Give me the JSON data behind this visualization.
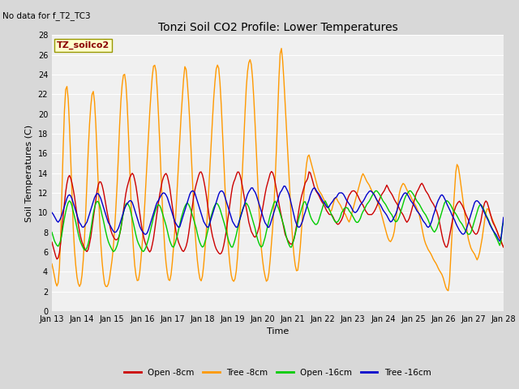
{
  "title": "Tonzi Soil CO2 Profile: Lower Temperatures",
  "subtitle": "No data for f_T2_TC3",
  "xlabel": "Time",
  "ylabel": "Soil Temperatures (C)",
  "ylim": [
    0,
    28
  ],
  "yticks": [
    0,
    2,
    4,
    6,
    8,
    10,
    12,
    14,
    16,
    18,
    20,
    22,
    24,
    26,
    28
  ],
  "x_tick_labels": [
    "Jan 13",
    "Jan 14",
    "Jan 15",
    "Jan 16",
    "Jan 17",
    "Jan 18",
    "Jan 19",
    "Jan 20",
    "Jan 21",
    "Jan 22",
    "Jan 23",
    "Jan 24",
    "Jan 25",
    "Jan 26",
    "Jan 27",
    "Jan 28"
  ],
  "legend_labels": [
    "Open -8cm",
    "Tree -8cm",
    "Open -16cm",
    "Tree -16cm"
  ],
  "legend_colors": [
    "#cc0000",
    "#ff9900",
    "#00cc00",
    "#0000cc"
  ],
  "annotation": "TZ_soilco2",
  "annotation_color": "#8b0000",
  "annotation_bg": "#ffffcc",
  "annotation_edge": "#999900",
  "fig_bg": "#d8d8d8",
  "plot_bg": "#f0f0f0",
  "grid_color": "#ffffff",
  "n_points": 361,
  "open8_data": [
    7.0,
    6.5,
    6.0,
    5.5,
    5.2,
    5.5,
    6.2,
    7.5,
    9.0,
    10.5,
    11.8,
    12.8,
    13.5,
    13.8,
    13.5,
    13.0,
    12.3,
    11.5,
    10.5,
    9.5,
    8.5,
    7.8,
    7.2,
    6.8,
    6.5,
    6.2,
    6.0,
    6.2,
    6.8,
    7.5,
    8.5,
    9.5,
    10.5,
    11.5,
    12.5,
    13.0,
    13.2,
    13.0,
    12.5,
    11.8,
    11.0,
    10.2,
    9.5,
    8.8,
    8.2,
    7.8,
    7.5,
    7.3,
    7.2,
    7.3,
    7.5,
    8.0,
    8.8,
    9.8,
    10.8,
    11.8,
    12.5,
    13.0,
    13.5,
    13.8,
    14.0,
    13.8,
    13.2,
    12.5,
    11.5,
    10.5,
    9.5,
    8.5,
    7.8,
    7.2,
    6.8,
    6.5,
    6.2,
    6.0,
    6.2,
    6.8,
    7.5,
    8.5,
    9.5,
    10.5,
    11.5,
    12.2,
    13.0,
    13.5,
    13.8,
    14.0,
    13.8,
    13.2,
    12.5,
    11.5,
    10.5,
    9.5,
    8.5,
    7.8,
    7.2,
    6.8,
    6.5,
    6.2,
    6.0,
    6.2,
    6.5,
    7.0,
    7.8,
    8.8,
    9.8,
    10.8,
    11.8,
    12.5,
    13.0,
    13.5,
    14.0,
    14.2,
    14.0,
    13.5,
    12.8,
    12.0,
    11.0,
    10.0,
    9.0,
    8.2,
    7.5,
    7.0,
    6.5,
    6.2,
    6.0,
    5.8,
    5.8,
    6.0,
    6.5,
    7.2,
    8.0,
    9.0,
    10.0,
    11.0,
    12.0,
    12.8,
    13.2,
    13.5,
    14.0,
    14.2,
    14.0,
    13.5,
    12.8,
    12.0,
    11.2,
    10.5,
    9.8,
    9.0,
    8.5,
    8.0,
    7.8,
    7.5,
    7.5,
    7.8,
    8.2,
    8.8,
    9.5,
    10.2,
    11.0,
    11.8,
    12.5,
    13.0,
    13.5,
    14.0,
    14.2,
    14.0,
    13.5,
    12.8,
    12.0,
    11.2,
    10.5,
    9.8,
    9.2,
    8.5,
    7.8,
    7.5,
    7.2,
    7.0,
    6.8,
    6.8,
    7.0,
    7.5,
    8.2,
    9.0,
    10.0,
    10.8,
    11.5,
    12.0,
    12.5,
    13.0,
    13.2,
    13.5,
    14.2,
    14.0,
    13.5,
    13.0,
    12.5,
    12.2,
    12.0,
    11.8,
    11.5,
    11.2,
    11.0,
    10.8,
    10.5,
    10.2,
    10.0,
    9.8,
    9.8,
    9.8,
    9.5,
    9.2,
    9.0,
    8.8,
    8.8,
    9.0,
    9.2,
    9.5,
    10.0,
    10.5,
    11.0,
    11.5,
    11.8,
    12.0,
    12.2,
    12.2,
    12.2,
    12.0,
    11.8,
    11.5,
    11.2,
    11.0,
    10.8,
    10.5,
    10.2,
    10.0,
    9.8,
    9.8,
    9.8,
    9.8,
    10.0,
    10.2,
    10.5,
    10.8,
    11.2,
    11.5,
    11.8,
    12.0,
    12.2,
    12.5,
    12.8,
    12.5,
    12.2,
    12.0,
    11.8,
    11.5,
    11.2,
    11.0,
    10.8,
    10.5,
    10.2,
    10.0,
    9.8,
    9.5,
    9.2,
    9.0,
    9.2,
    9.5,
    10.0,
    10.5,
    11.0,
    11.5,
    12.0,
    12.2,
    12.5,
    12.8,
    13.0,
    12.8,
    12.5,
    12.2,
    12.0,
    11.8,
    11.5,
    11.2,
    11.0,
    10.8,
    10.5,
    10.2,
    9.8,
    9.2,
    8.5,
    7.8,
    7.2,
    6.8,
    6.5,
    6.5,
    7.0,
    7.8,
    8.5,
    9.2,
    10.0,
    10.5,
    10.8,
    11.0,
    11.2,
    11.0,
    10.8,
    10.5,
    10.2,
    9.8,
    9.5,
    9.2,
    8.8,
    8.5,
    8.2,
    8.0,
    7.8,
    7.8,
    8.0,
    8.5,
    9.0,
    9.8,
    10.5,
    11.0,
    11.2,
    11.0,
    10.5,
    10.0,
    9.5,
    9.0,
    8.8,
    8.5,
    8.2,
    7.8,
    7.5,
    7.2,
    6.8,
    6.5
  ],
  "tree8_data": [
    4.8,
    4.2,
    3.5,
    2.8,
    2.5,
    3.0,
    5.0,
    9.0,
    14.0,
    18.5,
    22.0,
    23.0,
    22.5,
    20.0,
    16.5,
    12.5,
    9.0,
    6.5,
    4.8,
    3.5,
    2.8,
    2.5,
    2.8,
    3.8,
    5.5,
    8.0,
    11.0,
    14.5,
    17.5,
    20.0,
    21.5,
    22.5,
    22.0,
    20.0,
    17.0,
    13.5,
    10.0,
    7.2,
    5.2,
    3.8,
    2.8,
    2.5,
    2.5,
    2.8,
    3.5,
    4.5,
    5.5,
    7.0,
    9.0,
    11.5,
    14.0,
    17.5,
    20.5,
    22.5,
    23.8,
    24.2,
    23.5,
    21.5,
    18.5,
    15.0,
    11.5,
    8.5,
    6.2,
    4.5,
    3.5,
    3.0,
    3.2,
    4.2,
    5.8,
    7.5,
    9.5,
    12.0,
    14.5,
    17.0,
    19.5,
    21.5,
    23.5,
    24.8,
    25.0,
    24.5,
    22.5,
    19.8,
    16.8,
    13.5,
    10.5,
    8.0,
    5.8,
    4.5,
    3.5,
    3.0,
    3.2,
    4.2,
    5.8,
    7.5,
    9.5,
    12.0,
    14.5,
    17.0,
    19.5,
    21.5,
    23.5,
    24.8,
    24.5,
    23.0,
    21.0,
    18.5,
    15.5,
    12.5,
    9.8,
    7.5,
    5.8,
    4.5,
    3.5,
    3.0,
    3.2,
    4.2,
    5.8,
    7.5,
    9.5,
    12.0,
    14.5,
    17.0,
    19.5,
    21.8,
    23.5,
    24.8,
    25.0,
    24.5,
    22.5,
    20.0,
    17.0,
    14.0,
    11.0,
    8.5,
    6.5,
    5.0,
    3.8,
    3.2,
    3.0,
    3.2,
    4.0,
    5.5,
    7.5,
    9.8,
    12.2,
    15.0,
    18.0,
    21.0,
    23.5,
    24.8,
    25.5,
    25.5,
    24.5,
    22.5,
    20.0,
    17.0,
    14.2,
    11.2,
    8.5,
    6.5,
    5.2,
    4.2,
    3.5,
    3.0,
    3.2,
    4.0,
    5.5,
    7.2,
    9.0,
    11.5,
    14.5,
    18.0,
    22.0,
    25.5,
    27.0,
    26.0,
    24.0,
    21.5,
    19.0,
    16.5,
    14.0,
    11.5,
    9.0,
    7.0,
    5.5,
    4.5,
    4.0,
    4.2,
    5.5,
    7.0,
    9.0,
    11.0,
    13.0,
    14.5,
    15.5,
    16.0,
    15.5,
    15.0,
    14.5,
    14.0,
    13.5,
    13.0,
    12.5,
    12.2,
    12.0,
    11.8,
    11.5,
    11.2,
    11.0,
    10.8,
    10.5,
    10.2,
    10.0,
    10.5,
    11.0,
    11.5,
    11.5,
    11.2,
    11.0,
    10.8,
    10.5,
    10.2,
    10.0,
    9.8,
    9.5,
    9.2,
    9.0,
    9.5,
    10.0,
    10.5,
    11.0,
    11.5,
    12.0,
    12.5,
    13.0,
    13.5,
    14.0,
    13.8,
    13.5,
    13.2,
    13.0,
    12.8,
    12.5,
    12.2,
    12.0,
    11.8,
    11.5,
    11.2,
    10.8,
    10.5,
    10.0,
    9.5,
    9.0,
    8.5,
    8.0,
    7.5,
    7.2,
    7.0,
    7.2,
    7.5,
    8.0,
    9.0,
    10.0,
    11.0,
    12.0,
    12.5,
    12.8,
    13.0,
    12.8,
    12.5,
    12.2,
    12.0,
    11.8,
    11.5,
    11.2,
    11.0,
    10.8,
    10.5,
    10.2,
    9.8,
    9.2,
    8.5,
    7.8,
    7.2,
    6.8,
    6.5,
    6.2,
    6.0,
    5.8,
    5.5,
    5.2,
    5.0,
    4.8,
    4.5,
    4.2,
    4.0,
    3.8,
    3.5,
    3.0,
    2.5,
    2.2,
    2.0,
    3.0,
    5.5,
    8.0,
    10.5,
    12.5,
    14.5,
    15.0,
    14.5,
    13.5,
    12.5,
    11.5,
    10.5,
    9.5,
    8.5,
    7.5,
    7.0,
    6.5,
    6.2,
    6.0,
    5.8,
    5.5,
    5.2,
    5.5,
    6.0,
    6.8,
    7.5,
    8.5,
    9.5,
    10.2,
    10.5,
    10.2,
    9.8,
    9.5,
    9.2,
    8.8,
    8.5,
    8.2,
    7.8,
    7.5,
    7.2,
    6.8,
    6.5
  ],
  "open16_data": [
    8.0,
    7.5,
    7.0,
    6.8,
    6.5,
    6.8,
    7.2,
    8.0,
    9.0,
    9.8,
    10.5,
    11.0,
    11.2,
    11.0,
    10.5,
    9.8,
    9.2,
    8.5,
    7.8,
    7.2,
    6.8,
    6.5,
    6.2,
    6.2,
    6.5,
    7.0,
    7.8,
    8.8,
    9.8,
    10.5,
    11.0,
    11.2,
    11.0,
    10.5,
    9.8,
    9.2,
    8.5,
    7.8,
    7.2,
    6.8,
    6.5,
    6.2,
    6.0,
    6.2,
    6.5,
    7.0,
    7.8,
    8.5,
    9.5,
    10.2,
    10.8,
    11.0,
    10.8,
    10.5,
    9.8,
    9.2,
    8.5,
    7.8,
    7.2,
    6.8,
    6.5,
    6.2,
    6.0,
    6.2,
    6.5,
    7.0,
    7.5,
    8.2,
    8.8,
    9.5,
    10.0,
    10.5,
    10.8,
    10.8,
    10.5,
    10.0,
    9.5,
    9.0,
    8.5,
    7.8,
    7.2,
    6.8,
    6.5,
    6.5,
    7.0,
    7.5,
    8.2,
    8.8,
    9.5,
    10.0,
    10.5,
    10.8,
    11.0,
    10.8,
    10.5,
    10.0,
    9.5,
    9.0,
    8.5,
    7.8,
    7.2,
    6.8,
    6.5,
    6.5,
    7.0,
    7.5,
    8.2,
    8.8,
    9.5,
    10.0,
    10.5,
    10.8,
    11.0,
    10.8,
    10.5,
    10.0,
    9.5,
    9.0,
    8.5,
    7.8,
    7.2,
    6.8,
    6.5,
    6.5,
    7.0,
    7.5,
    8.2,
    8.8,
    9.5,
    10.0,
    10.5,
    10.8,
    11.0,
    10.8,
    10.5,
    10.0,
    9.5,
    9.0,
    8.5,
    7.8,
    7.2,
    6.8,
    6.5,
    6.5,
    7.0,
    7.5,
    8.2,
    8.8,
    9.5,
    10.0,
    10.5,
    11.0,
    11.2,
    10.8,
    10.5,
    10.0,
    9.5,
    9.0,
    8.5,
    7.8,
    7.2,
    6.8,
    6.5,
    6.5,
    7.0,
    7.5,
    8.2,
    8.8,
    9.5,
    10.0,
    10.5,
    11.0,
    11.2,
    10.8,
    10.5,
    10.0,
    9.5,
    9.2,
    9.0,
    8.8,
    8.8,
    9.0,
    9.5,
    10.0,
    10.5,
    11.0,
    11.2,
    10.8,
    10.5,
    10.2,
    9.8,
    9.5,
    9.2,
    9.0,
    9.0,
    9.2,
    9.5,
    10.0,
    10.2,
    10.5,
    10.5,
    10.5,
    10.2,
    10.0,
    9.8,
    9.5,
    9.2,
    9.0,
    9.0,
    9.2,
    9.5,
    10.0,
    10.2,
    10.5,
    10.8,
    11.0,
    11.2,
    11.5,
    11.8,
    12.0,
    12.2,
    12.2,
    12.0,
    11.8,
    11.5,
    11.2,
    11.0,
    10.8,
    10.5,
    10.2,
    10.0,
    9.8,
    9.5,
    9.2,
    9.0,
    9.2,
    9.5,
    10.0,
    10.5,
    11.0,
    11.5,
    11.8,
    12.0,
    12.2,
    12.2,
    12.0,
    11.8,
    11.5,
    11.2,
    11.0,
    10.8,
    10.5,
    10.2,
    10.0,
    9.8,
    9.5,
    9.2,
    8.8,
    8.5,
    8.2,
    8.0,
    8.2,
    8.5,
    9.0,
    9.5,
    10.0,
    10.5,
    11.0,
    11.2,
    11.2,
    11.0,
    10.8,
    10.5,
    10.2,
    10.0,
    9.8,
    9.5,
    9.2,
    9.0,
    8.8,
    8.5,
    8.2,
    8.0,
    7.8,
    7.8,
    8.0,
    8.5,
    9.0,
    9.5,
    10.0,
    10.5,
    10.8,
    10.8,
    10.5,
    10.2,
    9.8,
    9.5,
    9.2,
    8.8,
    8.5,
    8.2,
    7.8,
    7.5,
    7.2,
    6.8,
    6.5,
    8.5,
    9.0
  ],
  "tree16_data": [
    10.0,
    9.8,
    9.5,
    9.2,
    9.0,
    9.2,
    9.5,
    10.0,
    10.5,
    11.0,
    11.5,
    11.8,
    11.8,
    11.5,
    11.0,
    10.5,
    10.0,
    9.5,
    9.0,
    8.8,
    8.5,
    8.5,
    8.8,
    9.0,
    9.5,
    10.0,
    10.5,
    11.0,
    11.5,
    11.8,
    12.0,
    11.8,
    11.5,
    11.0,
    10.5,
    10.0,
    9.5,
    9.0,
    8.8,
    8.5,
    8.2,
    8.0,
    8.0,
    8.2,
    8.5,
    9.0,
    9.5,
    10.0,
    10.5,
    10.8,
    11.0,
    11.2,
    11.2,
    11.0,
    10.5,
    10.0,
    9.5,
    9.0,
    8.5,
    8.2,
    8.0,
    7.8,
    7.8,
    8.0,
    8.5,
    9.0,
    9.5,
    10.0,
    10.5,
    11.0,
    11.2,
    11.5,
    11.8,
    12.0,
    12.0,
    11.8,
    11.5,
    11.0,
    10.5,
    10.0,
    9.5,
    9.0,
    8.8,
    8.5,
    8.5,
    9.0,
    9.5,
    10.0,
    10.5,
    11.0,
    11.5,
    12.0,
    12.2,
    12.2,
    12.0,
    11.5,
    11.0,
    10.5,
    10.0,
    9.5,
    9.0,
    8.8,
    8.5,
    8.5,
    9.0,
    9.5,
    10.0,
    10.5,
    11.0,
    11.5,
    12.0,
    12.2,
    12.2,
    12.0,
    11.5,
    11.0,
    10.5,
    10.0,
    9.5,
    9.0,
    8.8,
    8.5,
    8.5,
    9.0,
    9.5,
    10.0,
    10.5,
    11.0,
    11.5,
    12.0,
    12.2,
    12.5,
    12.5,
    12.2,
    12.0,
    11.5,
    11.0,
    10.5,
    10.0,
    9.5,
    9.0,
    8.8,
    8.5,
    8.5,
    9.0,
    9.5,
    10.0,
    10.5,
    11.0,
    11.5,
    12.0,
    12.2,
    12.5,
    12.8,
    12.5,
    12.2,
    11.8,
    11.2,
    10.5,
    9.8,
    9.2,
    8.8,
    8.5,
    8.5,
    8.8,
    9.2,
    9.8,
    10.2,
    10.8,
    11.2,
    11.8,
    12.2,
    12.5,
    12.5,
    12.2,
    12.0,
    11.8,
    11.5,
    11.2,
    11.0,
    10.8,
    10.5,
    10.5,
    10.8,
    11.0,
    11.2,
    11.5,
    11.5,
    11.8,
    12.0,
    12.0,
    12.0,
    11.8,
    11.5,
    11.2,
    11.0,
    10.8,
    10.5,
    10.2,
    10.0,
    10.0,
    10.2,
    10.5,
    10.8,
    11.0,
    11.2,
    11.5,
    11.8,
    12.0,
    12.2,
    12.2,
    12.0,
    11.8,
    11.5,
    11.2,
    11.0,
    10.8,
    10.5,
    10.2,
    10.0,
    9.8,
    9.5,
    9.2,
    9.0,
    9.2,
    9.5,
    9.8,
    10.2,
    10.8,
    11.2,
    11.5,
    11.8,
    12.0,
    12.0,
    11.8,
    11.5,
    11.2,
    11.0,
    10.8,
    10.5,
    10.2,
    10.0,
    9.8,
    9.5,
    9.2,
    9.0,
    8.8,
    8.5,
    8.5,
    8.8,
    9.2,
    9.8,
    10.2,
    10.8,
    11.2,
    11.5,
    11.8,
    11.8,
    11.5,
    11.2,
    10.8,
    10.5,
    10.2,
    9.8,
    9.5,
    9.2,
    8.8,
    8.5,
    8.2,
    8.0,
    7.8,
    7.8,
    8.0,
    8.5,
    9.0,
    9.5,
    10.0,
    10.5,
    11.0,
    11.2,
    11.2,
    11.0,
    10.8,
    10.5,
    10.2,
    9.8,
    9.5,
    9.2,
    8.8,
    8.5,
    8.2,
    8.0,
    7.8,
    7.5,
    7.2,
    7.0,
    8.0,
    9.5
  ]
}
